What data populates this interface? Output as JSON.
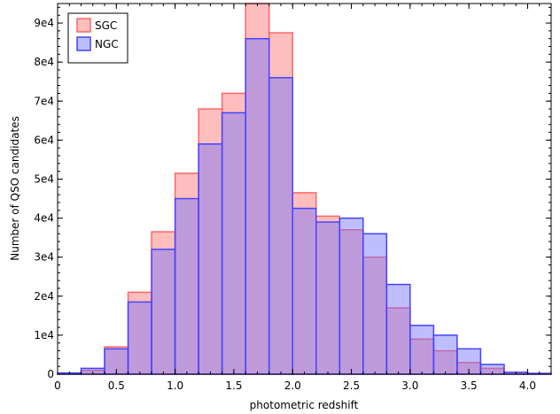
{
  "chart_data": {
    "type": "bar",
    "title": "",
    "xlabel": "photometric redshift",
    "ylabel": "Number of QSO candidates",
    "xlim": [
      0,
      4.2
    ],
    "ylim": [
      0,
      95000
    ],
    "bin_width": 0.2,
    "bin_starts": [
      0.0,
      0.2,
      0.4,
      0.6,
      0.8,
      1.0,
      1.2,
      1.4,
      1.6,
      1.8,
      2.0,
      2.2,
      2.4,
      2.6,
      2.8,
      3.0,
      3.2,
      3.4,
      3.6,
      3.8,
      4.0
    ],
    "series": [
      {
        "name": "SGC",
        "color": "#ff6666",
        "fill": "rgba(255,110,110,0.45)",
        "values": [
          300,
          1000,
          7000,
          21000,
          36500,
          51500,
          68000,
          72000,
          95000,
          87500,
          46500,
          40500,
          37000,
          30000,
          17000,
          9000,
          6000,
          3000,
          1500,
          500,
          200
        ]
      },
      {
        "name": "NGC",
        "color": "#4444ff",
        "fill": "rgba(110,110,255,0.45)",
        "values": [
          300,
          1500,
          6500,
          18500,
          32000,
          45000,
          59000,
          67000,
          86000,
          76000,
          42500,
          39000,
          40000,
          36000,
          23000,
          12500,
          10000,
          6500,
          2500,
          500,
          200
        ]
      }
    ],
    "x_ticks": [
      "0",
      "0.5",
      "1.0",
      "1.5",
      "2.0",
      "2.5",
      "3.0",
      "3.5",
      "4.0"
    ],
    "x_tick_values": [
      0,
      0.5,
      1.0,
      1.5,
      2.0,
      2.5,
      3.0,
      3.5,
      4.0
    ],
    "y_ticks": [
      "0",
      "1e4",
      "2e4",
      "3e4",
      "4e4",
      "5e4",
      "6e4",
      "7e4",
      "8e4",
      "9e4"
    ],
    "y_tick_values": [
      0,
      10000,
      20000,
      30000,
      40000,
      50000,
      60000,
      70000,
      80000,
      90000
    ],
    "legend": {
      "placement": "top-left",
      "entries": [
        "SGC",
        "NGC"
      ]
    },
    "grid": false
  }
}
